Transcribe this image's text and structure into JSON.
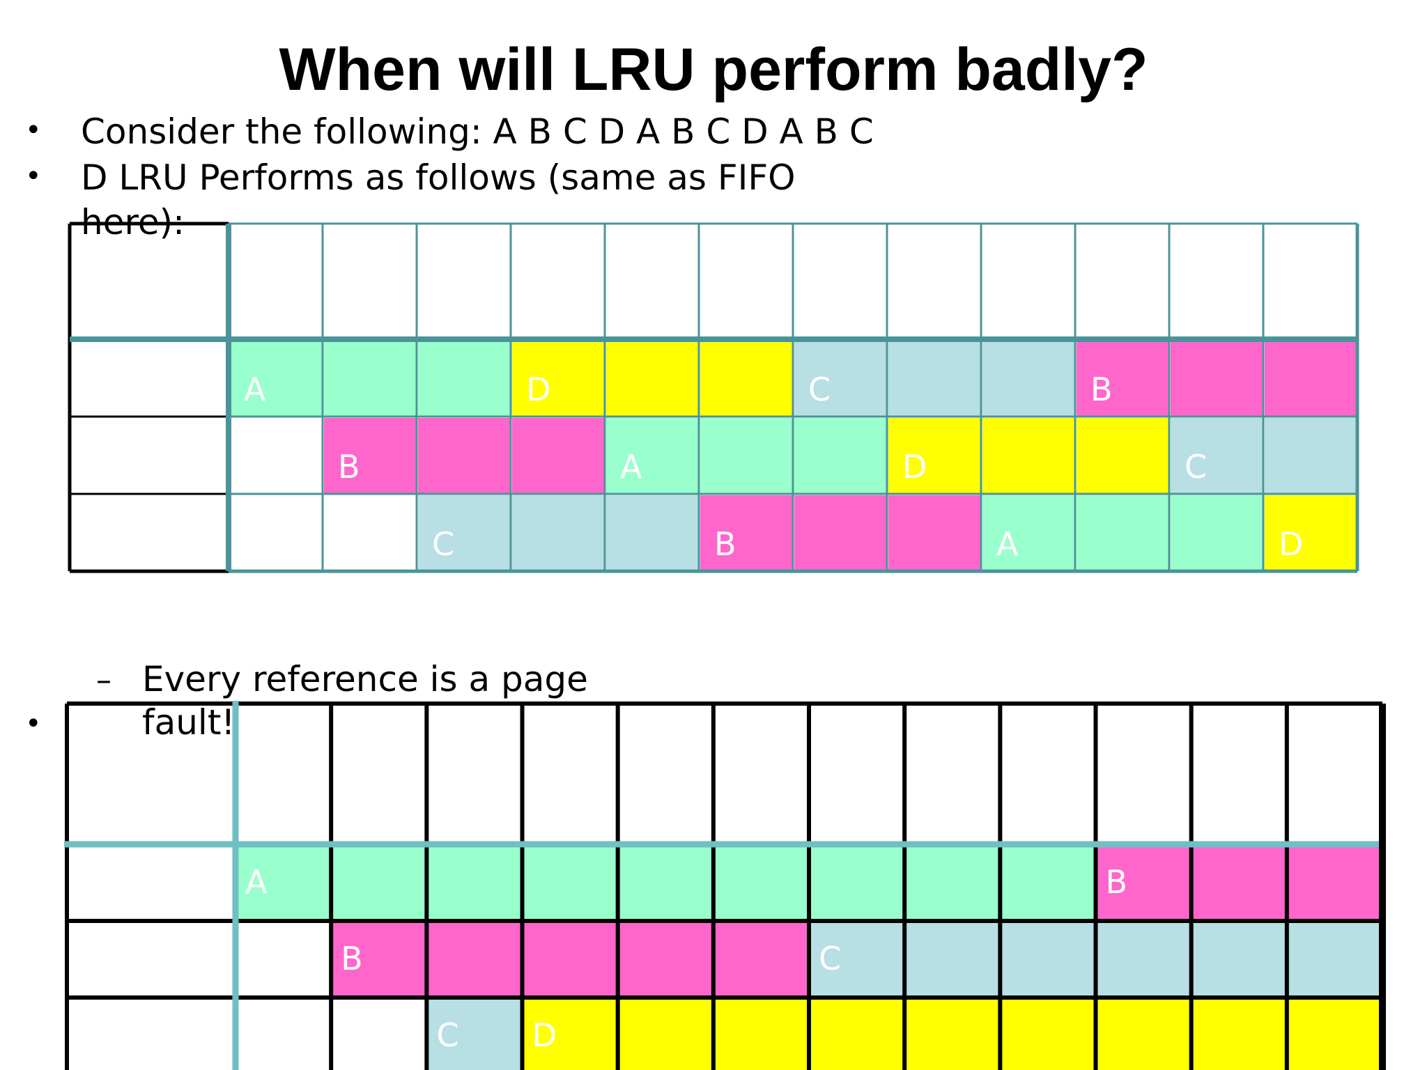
{
  "slide": {
    "title": "When will LRU perform badly?",
    "bullets": [
      "Consider the following: A B C D A B C D A B C",
      "D LRU Performs as follows (same as FIFO",
      "here):"
    ],
    "sub_bullet_line1": "Every reference is a page",
    "sub_bullet_line2": "fault!",
    "sub_marker": "–",
    "bullet_marker": "•"
  },
  "colors": {
    "A": "#99ffcc",
    "B": "#ff66cc",
    "C": "#b8dfe3",
    "D": "#ffff00",
    "grid_teal": "#4a9499",
    "grid_teal_light": "#6fbfc4",
    "grid_black": "#000000"
  },
  "table_top": {
    "columns": 12,
    "rows": [
      [
        "A",
        "",
        "",
        "D",
        "",
        "",
        "C",
        "",
        "",
        "B",
        "",
        ""
      ],
      [
        "",
        "B",
        "",
        "",
        "A",
        "",
        "",
        "D",
        "",
        "",
        "C",
        ""
      ],
      [
        "",
        "",
        "C",
        "",
        "",
        "B",
        "",
        "",
        "A",
        "",
        "",
        "D"
      ]
    ],
    "fills": [
      [
        "A",
        "A",
        "A",
        "D",
        "D",
        "D",
        "C",
        "C",
        "C",
        "B",
        "B",
        "B"
      ],
      [
        "",
        "B",
        "B",
        "B",
        "A",
        "A",
        "A",
        "D",
        "D",
        "D",
        "C",
        "C"
      ],
      [
        "",
        "",
        "C",
        "C",
        "C",
        "B",
        "B",
        "B",
        "A",
        "A",
        "A",
        "D"
      ]
    ]
  },
  "table_bottom": {
    "columns": 12,
    "rows": [
      [
        "A",
        "",
        "",
        "",
        "",
        "",
        "",
        "",
        "",
        "B",
        "",
        ""
      ],
      [
        "",
        "B",
        "",
        "",
        "",
        "",
        "C",
        "",
        "",
        "",
        "",
        ""
      ],
      [
        "",
        "",
        "C",
        "D",
        "",
        "",
        "",
        "",
        "",
        "",
        "",
        ""
      ]
    ],
    "fills": [
      [
        "A",
        "A",
        "A",
        "A",
        "A",
        "A",
        "A",
        "A",
        "A",
        "B",
        "B",
        "B"
      ],
      [
        "",
        "B",
        "B",
        "B",
        "B",
        "B",
        "C",
        "C",
        "C",
        "C",
        "C",
        "C"
      ],
      [
        "",
        "",
        "C",
        "D",
        "D",
        "D",
        "D",
        "D",
        "D",
        "D",
        "D",
        "D"
      ]
    ]
  }
}
